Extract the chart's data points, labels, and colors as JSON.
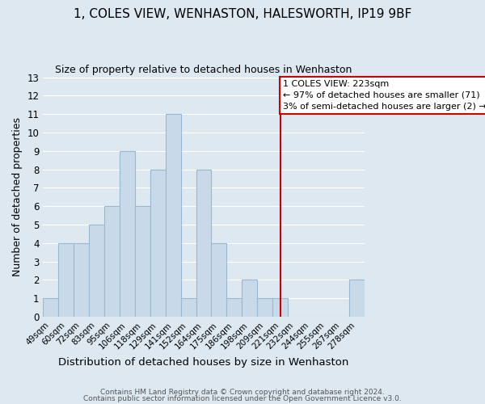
{
  "title": "1, COLES VIEW, WENHASTON, HALESWORTH, IP19 9BF",
  "subtitle": "Size of property relative to detached houses in Wenhaston",
  "xlabel": "Distribution of detached houses by size in Wenhaston",
  "ylabel": "Number of detached properties",
  "bar_color": "#c8daea",
  "bar_edge_color": "#9ab8d0",
  "bin_labels": [
    "49sqm",
    "60sqm",
    "72sqm",
    "83sqm",
    "95sqm",
    "106sqm",
    "118sqm",
    "129sqm",
    "141sqm",
    "152sqm",
    "164sqm",
    "175sqm",
    "186sqm",
    "198sqm",
    "209sqm",
    "221sqm",
    "232sqm",
    "244sqm",
    "255sqm",
    "267sqm",
    "278sqm"
  ],
  "bar_heights": [
    1,
    4,
    4,
    5,
    6,
    9,
    6,
    8,
    11,
    1,
    8,
    4,
    1,
    2,
    1,
    1,
    0,
    0,
    0,
    0,
    2
  ],
  "ylim": [
    0,
    13
  ],
  "yticks": [
    0,
    1,
    2,
    3,
    4,
    5,
    6,
    7,
    8,
    9,
    10,
    11,
    12,
    13
  ],
  "marker_line_index": 15,
  "annotation_title": "1 COLES VIEW: 223sqm",
  "annotation_line1": "← 97% of detached houses are smaller (71)",
  "annotation_line2": "3% of semi-detached houses are larger (2) →",
  "red_line_color": "#cc0000",
  "annotation_box_facecolor": "#ffffff",
  "annotation_box_edgecolor": "#cc0000",
  "footer_line1": "Contains HM Land Registry data © Crown copyright and database right 2024.",
  "footer_line2": "Contains public sector information licensed under the Open Government Licence v3.0.",
  "background_color": "#dde8f0",
  "grid_color": "#ffffff",
  "title_fontsize": 11,
  "subtitle_fontsize": 9
}
